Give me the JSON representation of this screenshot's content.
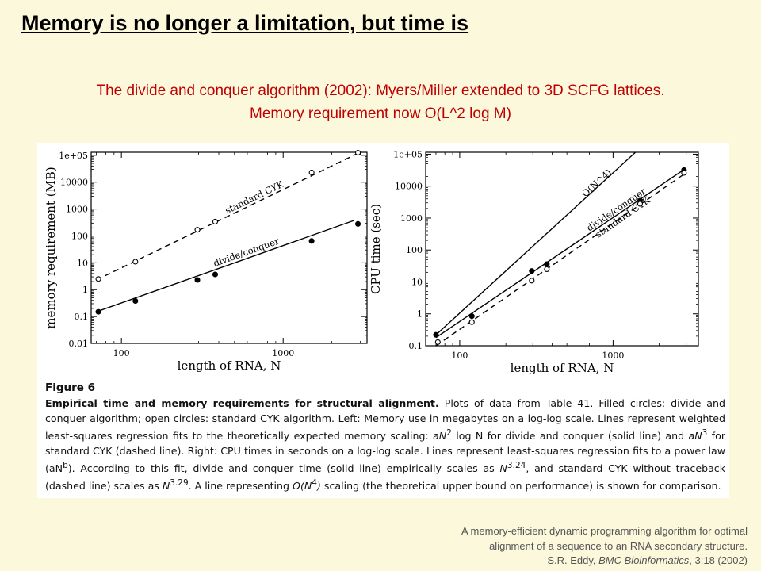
{
  "slide": {
    "title": "Memory is no longer a limitation, but time is",
    "subtitle_line1": "The divide and conquer algorithm (2002): Myers/Miller extended to 3D SCFG lattices.",
    "subtitle_line2": "Memory requirement now O(L^2 log M)"
  },
  "caption": {
    "figure_label": "Figure 6",
    "heading": "Empirical time and memory requirements for structural alignment.",
    "parts": [
      " Plots of data from Table 41. Filled circles: divide and conquer algorithm; open circles: standard CYK algorithm. Left: Memory use in megabytes on a log-log scale. Lines represent weighted least-squares regression fits to the theoretically expected memory scaling: ",
      "aN",
      "2",
      " log N for divide and conquer (solid line) and ",
      "aN",
      "3",
      " for standard CYK (dashed line). Right: CPU times in seconds on a log-log scale. Lines represent least-squares regression fits to a power law (aN",
      "b",
      "). According to this fit, divide and conquer time (solid line) empirically scales as ",
      "N",
      "3.24",
      ", and standard CYK without traceback (dashed line) scales as ",
      "N",
      "3.29",
      ". A line representing ",
      "O(N",
      "4",
      ")",
      " scaling (the theoretical upper bound on performance) is shown for comparison."
    ]
  },
  "citation": {
    "line1": "A memory-efficient dynamic programming algorithm for optimal",
    "line2": "alignment of a sequence to an RNA secondary structure.",
    "line3_prefix": "S.R. Eddy, ",
    "line3_journal": "BMC Bioinformatics",
    "line3_suffix": ", 3:18 (2002)"
  },
  "chart_data": [
    {
      "type": "scatter",
      "xscale": "log",
      "yscale": "log",
      "xlabel": "length of RNA, N",
      "ylabel": "memory requirement (MB)",
      "xlim": [
        65,
        3300
      ],
      "ylim": [
        0.01,
        130000
      ],
      "xticks": [
        100,
        1000
      ],
      "yticks": [
        0.01,
        0.1,
        1,
        10,
        100,
        1000,
        10000,
        100000
      ],
      "yticklabels": [
        "0.01",
        "0.1",
        "1",
        "10",
        "100",
        "1000",
        "10000",
        "1e+05"
      ],
      "series": [
        {
          "name": "standard CYK",
          "marker": "open",
          "line": "dashed",
          "x": [
            72,
            122,
            295,
            380,
            1500,
            2900
          ],
          "y": [
            2.5,
            11,
            170,
            340,
            23000,
            125000
          ],
          "fit": [
            [
              70,
              2.3
            ],
            [
              2950,
              125000
            ]
          ]
        },
        {
          "name": "divide/conquer",
          "marker": "filled",
          "line": "solid",
          "x": [
            72,
            122,
            295,
            380,
            1500,
            2900
          ],
          "y": [
            0.15,
            0.38,
            2.3,
            3.7,
            65,
            280
          ],
          "fit": [
            [
              70,
              0.15
            ],
            [
              2750,
              380
            ]
          ]
        }
      ]
    },
    {
      "type": "scatter",
      "xscale": "log",
      "yscale": "log",
      "xlabel": "length of RNA, N",
      "ylabel": "CPU time (sec)",
      "xlim": [
        60,
        3600
      ],
      "ylim": [
        0.1,
        115000
      ],
      "xticks": [
        100,
        1000
      ],
      "yticks": [
        0.1,
        1,
        10,
        100,
        1000,
        10000,
        100000
      ],
      "yticklabels": [
        "0.1",
        "1",
        "10",
        "100",
        "1000",
        "10000",
        "1e+05"
      ],
      "series": [
        {
          "name": "O(N^4)",
          "line": "solid",
          "fit": [
            [
              70,
              0.22
            ],
            [
              1400,
              115000
            ]
          ]
        },
        {
          "name": "divide/conquer",
          "marker": "filled",
          "line": "solid",
          "x": [
            70,
            120,
            295,
            370,
            1500,
            2900
          ],
          "y": [
            0.22,
            0.85,
            22,
            36,
            3500,
            32000
          ],
          "fit": [
            [
              70,
              0.18
            ],
            [
              2950,
              35000
            ]
          ]
        },
        {
          "name": "standard CYK",
          "marker": "open",
          "line": "dashed",
          "x": [
            72,
            120,
            295,
            370,
            1500,
            2900
          ],
          "y": [
            0.13,
            0.55,
            11,
            25,
            2800,
            26000
          ],
          "fit": [
            [
              70,
              0.1
            ],
            [
              2950,
              25000
            ]
          ]
        }
      ]
    }
  ]
}
